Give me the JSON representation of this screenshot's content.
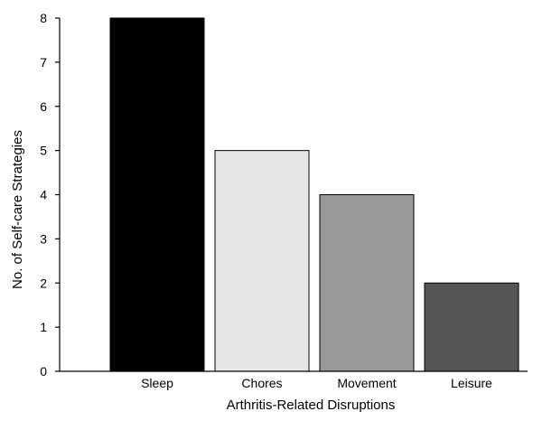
{
  "chart_data": {
    "type": "bar",
    "title": "",
    "xlabel": "Arthritis-Related Disruptions",
    "ylabel": "No. of Self-care Strategies",
    "categories": [
      "Sleep",
      "Chores",
      "Movement",
      "Leisure"
    ],
    "values": [
      8,
      5,
      4,
      2
    ],
    "colors": [
      "#000000",
      "#e6e6e6",
      "#999999",
      "#555555"
    ],
    "ylim": [
      0,
      8
    ],
    "yticks": [
      "0",
      "1",
      "2",
      "3",
      "4",
      "5",
      "6",
      "7",
      "8"
    ],
    "grid": false
  }
}
